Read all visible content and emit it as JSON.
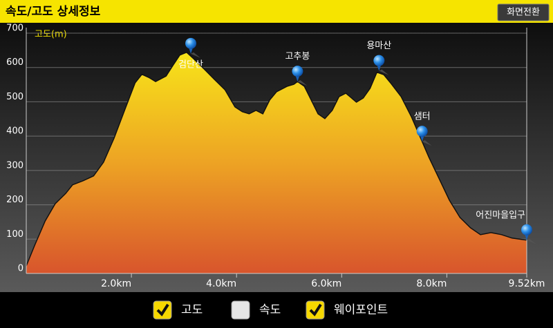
{
  "header": {
    "title": "속도/고도 상세정보",
    "button": "화면전환"
  },
  "chart_data": {
    "type": "area",
    "y_label": "고도(m)",
    "x": [
      0,
      0.16,
      0.36,
      0.55,
      0.75,
      0.88,
      1.08,
      1.28,
      1.47,
      1.67,
      1.87,
      2.07,
      2.2,
      2.33,
      2.46,
      2.66,
      2.79,
      2.92,
      3.05,
      3.18,
      3.38,
      3.58,
      3.78,
      3.97,
      4.11,
      4.24,
      4.37,
      4.5,
      4.63,
      4.76,
      4.96,
      5.09,
      5.16,
      5.29,
      5.42,
      5.55,
      5.68,
      5.82,
      5.95,
      6.08,
      6.28,
      6.41,
      6.54,
      6.67,
      6.8,
      6.93,
      7.13,
      7.33,
      7.53,
      7.66,
      7.86,
      8.05,
      8.25,
      8.45,
      8.64,
      8.84,
      9.04,
      9.24,
      9.52
    ],
    "values": [
      22,
      82,
      153,
      203,
      233,
      258,
      270,
      284,
      324,
      394,
      475,
      555,
      580,
      571,
      559,
      575,
      606,
      636,
      644,
      626,
      596,
      565,
      535,
      485,
      471,
      465,
      475,
      465,
      505,
      529,
      545,
      551,
      559,
      545,
      505,
      465,
      451,
      475,
      515,
      525,
      499,
      511,
      539,
      586,
      579,
      555,
      515,
      455,
      384,
      338,
      274,
      213,
      163,
      133,
      113,
      119,
      113,
      103,
      97
    ],
    "xlim": [
      0,
      9.52
    ],
    "ylim": [
      0,
      700
    ],
    "xticks": [
      {
        "value": 2,
        "label": "2.0km"
      },
      {
        "value": 4,
        "label": "4.0km"
      },
      {
        "value": 6,
        "label": "6.0km"
      },
      {
        "value": 8,
        "label": "8.0km"
      },
      {
        "value": 9.52,
        "label": "9.52km"
      }
    ],
    "yticks": [
      0,
      100,
      200,
      300,
      400,
      500,
      600,
      700
    ],
    "grid": true,
    "waypoints": {
      "names": [
        "검단산",
        "고추봉",
        "용마산",
        "샘터",
        "어진마을입구"
      ],
      "x": [
        3.13,
        5.16,
        6.71,
        7.53,
        9.52
      ],
      "values": [
        640,
        559,
        590,
        384,
        97
      ]
    }
  },
  "legend": [
    {
      "label": "고도",
      "checked": true
    },
    {
      "label": "속도",
      "checked": false
    },
    {
      "label": "웨이포인트",
      "checked": true
    }
  ]
}
